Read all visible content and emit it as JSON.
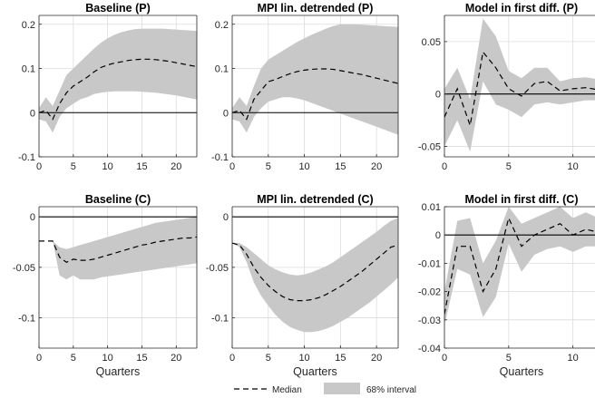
{
  "colors": {
    "band": "#c8c8c8",
    "median": "#000000",
    "zero": "#000000",
    "grid": "#dcdcdc",
    "axis": "#262626"
  },
  "legend": {
    "median_label": "Median",
    "band_label": "68% interval"
  },
  "chart_data": [
    {
      "type": "area",
      "title": "Baseline (P)",
      "xlabel": "",
      "xlim": [
        0,
        23
      ],
      "ylim": [
        -0.1,
        0.22
      ],
      "xticks": [
        0,
        5,
        10,
        15,
        20
      ],
      "yticks": [
        -0.1,
        0,
        0.1,
        0.2
      ],
      "ytick_labels": [
        "-0.1",
        "0",
        "0.1",
        "0.2"
      ],
      "x": [
        0,
        1,
        2,
        3,
        4,
        5,
        6,
        7,
        8,
        9,
        10,
        11,
        12,
        13,
        14,
        15,
        16,
        17,
        18,
        19,
        20,
        21,
        22,
        23
      ],
      "median": [
        0,
        0.005,
        -0.015,
        0.02,
        0.045,
        0.06,
        0.07,
        0.08,
        0.092,
        0.102,
        0.108,
        0.112,
        0.115,
        0.118,
        0.12,
        0.121,
        0.121,
        0.12,
        0.118,
        0.116,
        0.113,
        0.11,
        0.107,
        0.104
      ],
      "lower": [
        -0.015,
        -0.02,
        -0.045,
        -0.01,
        0.01,
        0.02,
        0.03,
        0.035,
        0.042,
        0.045,
        0.047,
        0.048,
        0.048,
        0.048,
        0.048,
        0.047,
        0.046,
        0.045,
        0.043,
        0.041,
        0.039,
        0.036,
        0.033,
        0.03
      ],
      "upper": [
        0.01,
        0.035,
        0.015,
        0.05,
        0.085,
        0.1,
        0.115,
        0.13,
        0.145,
        0.158,
        0.168,
        0.176,
        0.182,
        0.186,
        0.189,
        0.19,
        0.19,
        0.19,
        0.19,
        0.189,
        0.188,
        0.187,
        0.186,
        0.185
      ]
    },
    {
      "type": "area",
      "title": "MPI lin. detrended (P)",
      "xlabel": "",
      "xlim": [
        0,
        23
      ],
      "ylim": [
        -0.1,
        0.22
      ],
      "xticks": [
        0,
        5,
        10,
        15,
        20
      ],
      "yticks": [
        -0.1,
        0,
        0.1,
        0.2
      ],
      "ytick_labels": [
        "-0.1",
        "0",
        "0.1",
        "0.2"
      ],
      "x": [
        0,
        1,
        2,
        3,
        4,
        5,
        6,
        7,
        8,
        9,
        10,
        11,
        12,
        13,
        14,
        15,
        16,
        17,
        18,
        19,
        20,
        21,
        22,
        23
      ],
      "median": [
        0,
        0.005,
        -0.015,
        0.03,
        0.05,
        0.07,
        0.075,
        0.082,
        0.088,
        0.093,
        0.096,
        0.098,
        0.099,
        0.099,
        0.098,
        0.095,
        0.092,
        0.089,
        0.086,
        0.082,
        0.078,
        0.074,
        0.07,
        0.066
      ],
      "lower": [
        -0.015,
        -0.02,
        -0.045,
        -0.01,
        0.01,
        0.025,
        0.03,
        0.035,
        0.035,
        0.032,
        0.028,
        0.022,
        0.016,
        0.01,
        0.004,
        -0.002,
        -0.008,
        -0.014,
        -0.02,
        -0.026,
        -0.032,
        -0.038,
        -0.044,
        -0.05
      ],
      "upper": [
        0.01,
        0.035,
        0.015,
        0.06,
        0.1,
        0.12,
        0.13,
        0.14,
        0.15,
        0.16,
        0.168,
        0.176,
        0.183,
        0.19,
        0.196,
        0.2,
        0.2,
        0.2,
        0.199,
        0.198,
        0.197,
        0.196,
        0.195,
        0.194
      ]
    },
    {
      "type": "area",
      "title": "Model in first diff. (P)",
      "xlabel": "",
      "xlim": [
        0,
        12
      ],
      "ylim": [
        -0.06,
        0.075
      ],
      "xticks": [
        0,
        5,
        10
      ],
      "yticks": [
        -0.05,
        0,
        0.05
      ],
      "ytick_labels": [
        "-0.05",
        "0",
        "0.05"
      ],
      "x": [
        0,
        1,
        2,
        3,
        4,
        5,
        6,
        7,
        8,
        9,
        10,
        11,
        12
      ],
      "median": [
        -0.022,
        0.005,
        -0.03,
        0.04,
        0.025,
        0.005,
        -0.002,
        0.01,
        0.012,
        0.003,
        0.005,
        0.006,
        0.004
      ],
      "lower": [
        -0.05,
        -0.025,
        -0.055,
        0.012,
        -0.01,
        -0.015,
        -0.022,
        -0.01,
        -0.008,
        -0.01,
        -0.008,
        -0.006,
        -0.006
      ],
      "upper": [
        0.005,
        0.025,
        -0.005,
        0.072,
        0.055,
        0.022,
        0.015,
        0.025,
        0.025,
        0.012,
        0.015,
        0.016,
        0.014
      ]
    },
    {
      "type": "area",
      "title": "Baseline (C)",
      "xlabel": "Quarters",
      "xlim": [
        0,
        23
      ],
      "ylim": [
        -0.13,
        0.01
      ],
      "xticks": [
        0,
        5,
        10,
        15,
        20
      ],
      "yticks": [
        -0.1,
        -0.05,
        0
      ],
      "ytick_labels": [
        "-0.1",
        "-0.05",
        "0"
      ],
      "x": [
        0,
        1,
        2,
        3,
        4,
        5,
        6,
        7,
        8,
        9,
        10,
        11,
        12,
        13,
        14,
        15,
        16,
        17,
        18,
        19,
        20,
        21,
        22,
        23
      ],
      "median": [
        -0.024,
        -0.024,
        -0.024,
        -0.04,
        -0.045,
        -0.042,
        -0.043,
        -0.043,
        -0.042,
        -0.04,
        -0.038,
        -0.036,
        -0.034,
        -0.032,
        -0.03,
        -0.028,
        -0.027,
        -0.025,
        -0.024,
        -0.023,
        -0.022,
        -0.021,
        -0.021,
        -0.02
      ],
      "lower": [
        -0.024,
        -0.024,
        -0.024,
        -0.058,
        -0.062,
        -0.058,
        -0.062,
        -0.062,
        -0.062,
        -0.06,
        -0.059,
        -0.058,
        -0.057,
        -0.056,
        -0.055,
        -0.054,
        -0.053,
        -0.052,
        -0.051,
        -0.05,
        -0.049,
        -0.048,
        -0.047,
        -0.046
      ],
      "upper": [
        -0.024,
        -0.024,
        -0.024,
        -0.03,
        -0.032,
        -0.03,
        -0.028,
        -0.026,
        -0.024,
        -0.022,
        -0.02,
        -0.018,
        -0.016,
        -0.014,
        -0.012,
        -0.01,
        -0.008,
        -0.006,
        -0.005,
        -0.004,
        -0.003,
        -0.002,
        -0.001,
        0
      ]
    },
    {
      "type": "area",
      "title": "MPI lin. detrended (C)",
      "xlabel": "Quarters",
      "xlim": [
        0,
        23
      ],
      "ylim": [
        -0.13,
        0.01
      ],
      "xticks": [
        0,
        5,
        10,
        15,
        20
      ],
      "yticks": [
        -0.1,
        -0.05,
        0
      ],
      "ytick_labels": [
        "-0.1",
        "-0.05",
        "0"
      ],
      "x": [
        0,
        1,
        2,
        3,
        4,
        5,
        6,
        7,
        8,
        9,
        10,
        11,
        12,
        13,
        14,
        15,
        16,
        17,
        18,
        19,
        20,
        21,
        22,
        23
      ],
      "median": [
        -0.026,
        -0.028,
        -0.037,
        -0.05,
        -0.06,
        -0.068,
        -0.074,
        -0.079,
        -0.082,
        -0.083,
        -0.083,
        -0.082,
        -0.08,
        -0.077,
        -0.073,
        -0.069,
        -0.064,
        -0.059,
        -0.054,
        -0.048,
        -0.042,
        -0.036,
        -0.03,
        -0.028
      ],
      "lower": [
        -0.026,
        -0.03,
        -0.045,
        -0.065,
        -0.078,
        -0.088,
        -0.097,
        -0.104,
        -0.109,
        -0.112,
        -0.114,
        -0.114,
        -0.113,
        -0.111,
        -0.108,
        -0.104,
        -0.1,
        -0.095,
        -0.09,
        -0.085,
        -0.079,
        -0.073,
        -0.067,
        -0.06
      ],
      "upper": [
        -0.026,
        -0.026,
        -0.03,
        -0.036,
        -0.042,
        -0.048,
        -0.052,
        -0.055,
        -0.057,
        -0.058,
        -0.057,
        -0.055,
        -0.052,
        -0.049,
        -0.045,
        -0.04,
        -0.035,
        -0.03,
        -0.025,
        -0.02,
        -0.015,
        -0.009,
        -0.004,
        -0.001
      ]
    },
    {
      "type": "area",
      "title": "Model in first diff. (C)",
      "xlabel": "Quarters",
      "xlim": [
        0,
        12
      ],
      "ylim": [
        -0.04,
        0.01
      ],
      "xticks": [
        0,
        5,
        10
      ],
      "yticks": [
        -0.04,
        -0.03,
        -0.02,
        -0.01,
        0,
        0.01
      ],
      "ytick_labels": [
        "-0.04",
        "-0.03",
        "-0.02",
        "-0.01",
        "0",
        "0.01"
      ],
      "x": [
        0,
        1,
        2,
        3,
        4,
        5,
        6,
        7,
        8,
        9,
        10,
        11,
        12
      ],
      "median": [
        -0.028,
        -0.004,
        -0.004,
        -0.02,
        -0.012,
        0.006,
        -0.004,
        0,
        0.002,
        0.004,
        0,
        0.002,
        0.001
      ],
      "lower": [
        -0.032,
        -0.012,
        -0.014,
        -0.029,
        -0.022,
        -0.003,
        -0.013,
        -0.007,
        -0.005,
        -0.004,
        -0.006,
        -0.004,
        -0.004
      ],
      "upper": [
        -0.02,
        0.005,
        0.006,
        -0.01,
        -0.002,
        0.01,
        0.004,
        0.006,
        0.008,
        0.01,
        0.006,
        0.008,
        0.006
      ]
    }
  ]
}
